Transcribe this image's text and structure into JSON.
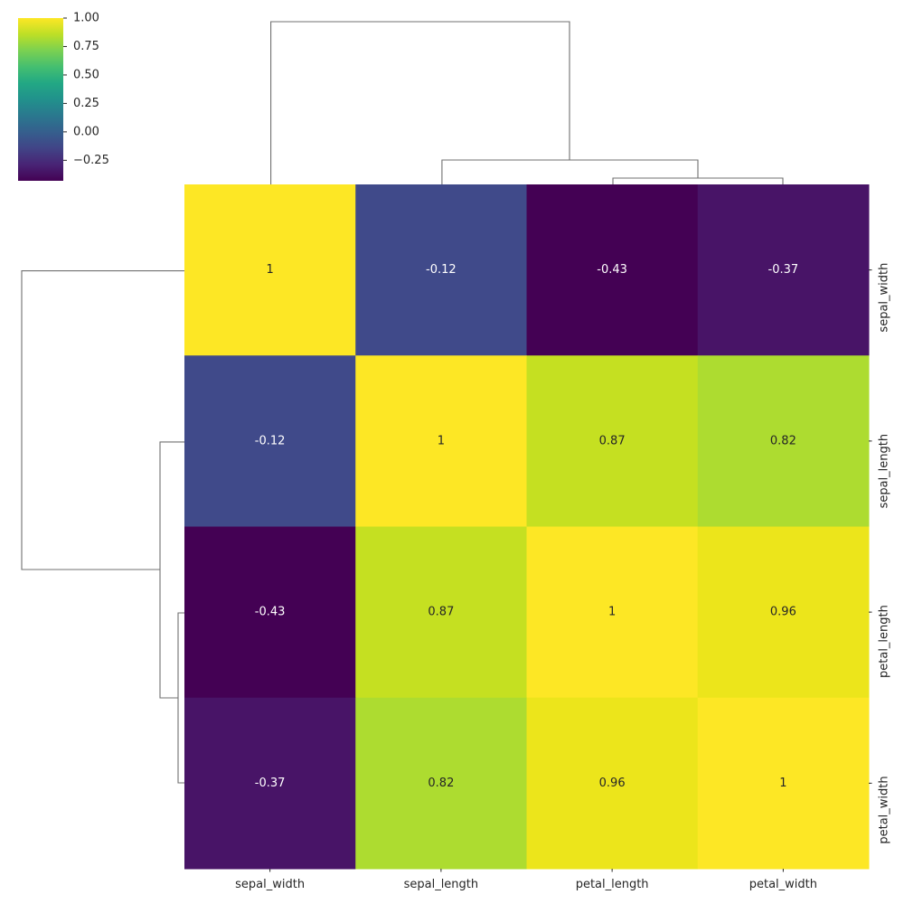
{
  "chart_data": {
    "type": "heatmap",
    "title": "",
    "subtitle": "",
    "xlabel": "",
    "ylabel": "",
    "row_labels": [
      "sepal_width",
      "sepal_length",
      "petal_length",
      "petal_width"
    ],
    "col_labels": [
      "sepal_width",
      "sepal_length",
      "petal_length",
      "petal_width"
    ],
    "values": [
      [
        1,
        -0.12,
        -0.43,
        -0.37
      ],
      [
        -0.12,
        1,
        0.87,
        0.82
      ],
      [
        -0.43,
        0.87,
        1,
        0.96
      ],
      [
        -0.37,
        0.82,
        0.96,
        1
      ]
    ],
    "annotations": [
      [
        "1",
        "-0.12",
        "-0.43",
        "-0.37"
      ],
      [
        "-0.12",
        "1",
        "0.87",
        "0.82"
      ],
      [
        "-0.43",
        "0.87",
        "1",
        "0.96"
      ],
      [
        "-0.37",
        "0.82",
        "0.96",
        "1"
      ]
    ],
    "colormap": "viridis",
    "vmin": -0.43,
    "vmax": 1.0,
    "colorbar": {
      "ticks": [
        1.0,
        0.75,
        0.5,
        0.25,
        0.0,
        -0.25
      ],
      "tick_labels": [
        "1.00",
        "0.75",
        "0.50",
        "0.25",
        "0.00",
        "−0.25"
      ],
      "position": "top-left"
    },
    "dendrograms": {
      "row": "left",
      "col": "top",
      "linkage_order": [
        "sepal_width",
        "sepal_length",
        "petal_length",
        "petal_width"
      ]
    }
  },
  "colors": {
    "cells": [
      [
        "#fde725",
        "#404a8a",
        "#440154",
        "#481467"
      ],
      [
        "#404a8a",
        "#fde725",
        "#c5e021",
        "#addc30"
      ],
      [
        "#440154",
        "#c5e021",
        "#fde725",
        "#ece51b"
      ],
      [
        "#481467",
        "#addc30",
        "#ece51b",
        "#fde725"
      ]
    ],
    "text_dark": "#262626",
    "text_light": "#ffffff",
    "dendrogram_line": "#707070"
  }
}
